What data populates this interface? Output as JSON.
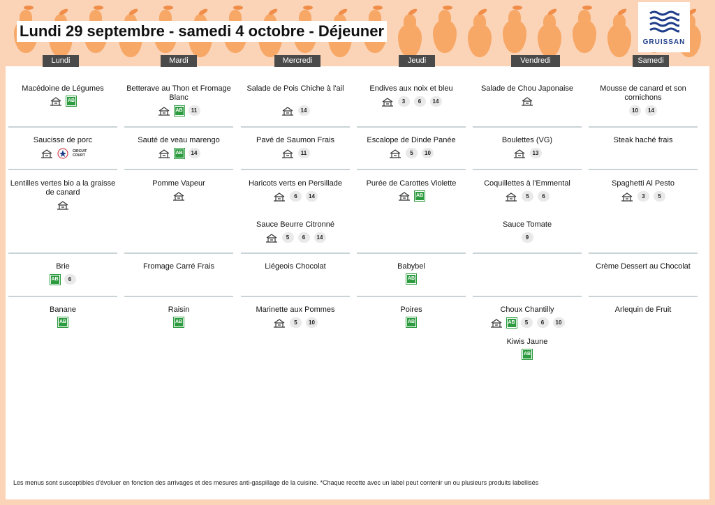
{
  "header": {
    "title": "Lundi 29 septembre - samedi 4 octobre  - Déjeuner",
    "logo_text": "GRUISSAN"
  },
  "days": [
    "Lundi",
    "Mardi",
    "Mercredi",
    "Jeudi",
    "Vendredi",
    "Samedi"
  ],
  "colors": {
    "background": "#fbd3b6",
    "pattern": "#f7a766",
    "day_header": "#4a4a4a",
    "bio_green": "#2d9b3f"
  },
  "menu": {
    "lundi": [
      {
        "name": "Macédoine de Légumes",
        "labels": [
          "home-made-icon",
          "ab-bio-icon"
        ],
        "allergens": []
      },
      {
        "name": "Saucisse de porc",
        "labels": [
          "home-made-icon",
          "label-rouge-icon",
          "circuit-court-icon"
        ],
        "allergens": []
      },
      {
        "name": "Lentilles vertes bio a la graisse de canard",
        "labels": [
          "home-made-icon"
        ],
        "allergens": []
      },
      {
        "name": "Brie",
        "labels": [
          "ab-bio-icon"
        ],
        "allergens": [
          "6"
        ]
      },
      {
        "name": "Banane",
        "labels": [
          "ab-bio-icon"
        ],
        "allergens": []
      }
    ],
    "mardi": [
      {
        "name": "Betterave au Thon et Fromage Blanc",
        "labels": [
          "home-made-icon",
          "ab-bio-icon"
        ],
        "allergens": [
          "11"
        ]
      },
      {
        "name": "Sauté de veau marengo",
        "labels": [
          "home-made-icon",
          "ab-bio-icon"
        ],
        "allergens": [
          "14"
        ]
      },
      {
        "name": "Pomme Vapeur",
        "labels": [
          "home-made-icon"
        ],
        "allergens": []
      },
      {
        "name": "Fromage Carré Frais",
        "labels": [],
        "allergens": []
      },
      {
        "name": "Raisin",
        "labels": [
          "ab-bio-icon"
        ],
        "allergens": []
      }
    ],
    "mercredi": [
      {
        "name": "Salade de Pois Chiche à l'ail",
        "labels": [
          "home-made-icon"
        ],
        "allergens": [
          "14"
        ]
      },
      {
        "name": "Pavé de Saumon Frais",
        "labels": [
          "home-made-icon"
        ],
        "allergens": [
          "11"
        ]
      },
      {
        "name": "Haricots verts en Persillade",
        "labels": [
          "home-made-icon"
        ],
        "allergens": [
          "6",
          "14"
        ]
      },
      {
        "name": "Sauce Beurre Citronné",
        "labels": [
          "home-made-icon"
        ],
        "allergens": [
          "5",
          "6",
          "14"
        ]
      },
      {
        "name": "Liégeois Chocolat",
        "labels": [],
        "allergens": []
      },
      {
        "name": "Marinette aux Pommes",
        "labels": [
          "home-made-icon"
        ],
        "allergens": [
          "5",
          "10"
        ]
      }
    ],
    "jeudi": [
      {
        "name": "Endives aux noix et bleu",
        "labels": [
          "home-made-icon"
        ],
        "allergens": [
          "3",
          "6",
          "14"
        ]
      },
      {
        "name": "Escalope de Dinde Panée",
        "labels": [
          "home-made-icon"
        ],
        "allergens": [
          "5",
          "10"
        ]
      },
      {
        "name": "Purée de Carottes Violette",
        "labels": [
          "home-made-icon",
          "ab-bio-icon"
        ],
        "allergens": []
      },
      {
        "name": "Babybel",
        "labels": [
          "ab-bio-icon"
        ],
        "allergens": []
      },
      {
        "name": "Poires",
        "labels": [
          "ab-bio-icon"
        ],
        "allergens": []
      }
    ],
    "vendredi": [
      {
        "name": "Salade de Chou Japonaise",
        "labels": [
          "home-made-icon"
        ],
        "allergens": []
      },
      {
        "name": "Boulettes (VG)",
        "labels": [
          "home-made-icon"
        ],
        "allergens": [
          "13"
        ]
      },
      {
        "name": "Coquillettes à l'Emmental",
        "labels": [
          "home-made-icon"
        ],
        "allergens": [
          "5",
          "6"
        ]
      },
      {
        "name": "Sauce Tomate",
        "labels": [],
        "allergens": [
          "9"
        ]
      },
      {
        "name": "Choux Chantilly",
        "labels": [
          "home-made-icon",
          "ab-bio-icon"
        ],
        "allergens": [
          "5",
          "6",
          "10"
        ]
      },
      {
        "name": "Kiwis Jaune",
        "labels": [
          "ab-bio-icon"
        ],
        "allergens": []
      }
    ],
    "samedi": [
      {
        "name": "Mousse de canard et son cornichons",
        "labels": [],
        "allergens": [
          "10",
          "14"
        ]
      },
      {
        "name": "Steak haché frais",
        "labels": [],
        "allergens": []
      },
      {
        "name": "Spaghetti Al Pesto",
        "labels": [
          "home-made-icon"
        ],
        "allergens": [
          "3",
          "5"
        ]
      },
      {
        "name": "Crème Dessert au Chocolat",
        "labels": [],
        "allergens": []
      },
      {
        "name": "Arlequin de Fruit",
        "labels": [],
        "allergens": []
      }
    ]
  },
  "footnote": "Les menus sont susceptibles d'évoluer en fonction des arrivages et des mesures anti-gaspillage de la cuisine. *Chaque recette avec un label peut contenir un ou plusieurs produits labellisés"
}
